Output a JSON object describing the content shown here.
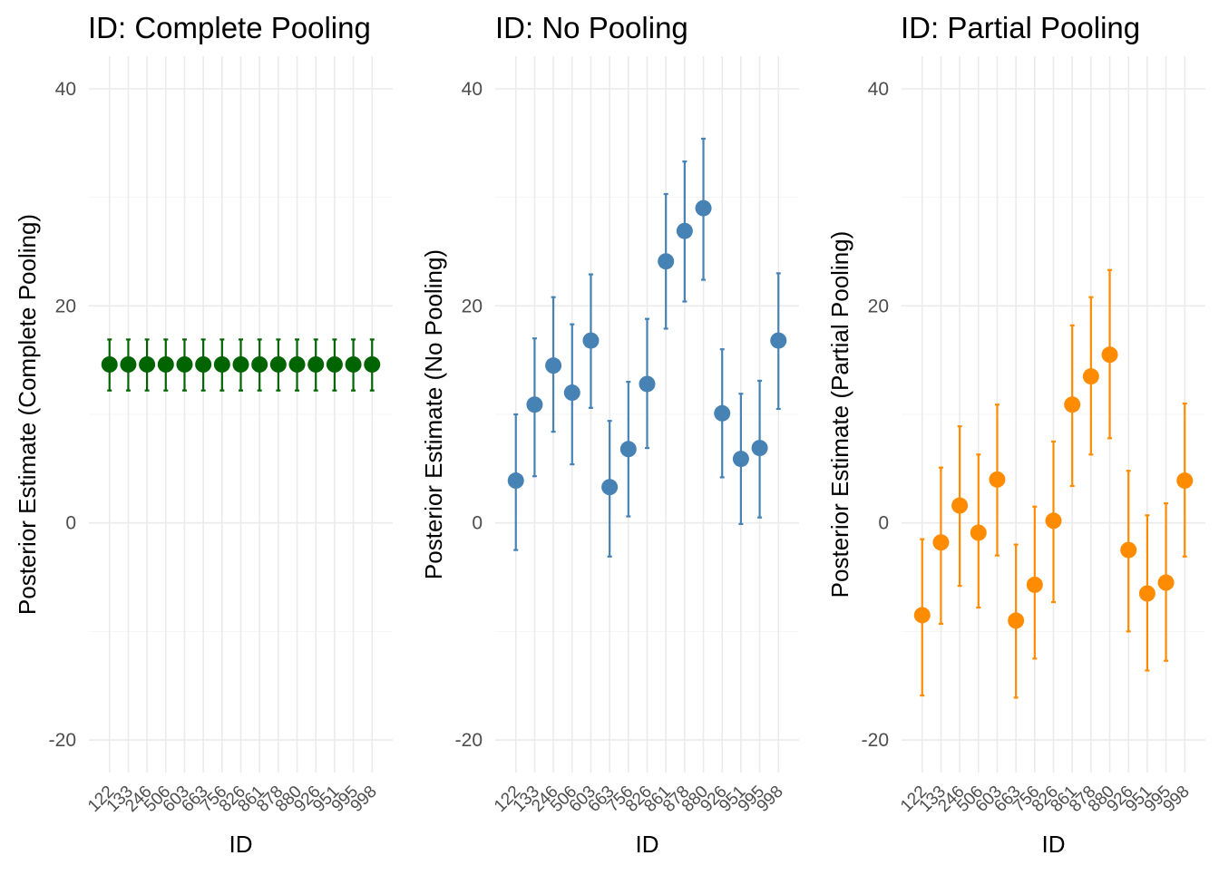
{
  "chart_data": [
    {
      "type": "scatter",
      "title": "ID: Complete Pooling",
      "xlabel": "ID",
      "ylabel": "Posterior Estimate (Complete Pooling)",
      "categories": [
        "122",
        "133",
        "246",
        "506",
        "603",
        "663",
        "756",
        "826",
        "861",
        "878",
        "880",
        "926",
        "951",
        "995",
        "998"
      ],
      "estimates": [
        14.6,
        14.6,
        14.6,
        14.6,
        14.6,
        14.6,
        14.6,
        14.6,
        14.6,
        14.6,
        14.6,
        14.6,
        14.6,
        14.6,
        14.6
      ],
      "lower": [
        12.2,
        12.2,
        12.2,
        12.2,
        12.2,
        12.2,
        12.2,
        12.2,
        12.2,
        12.2,
        12.2,
        12.2,
        12.2,
        12.2,
        12.2
      ],
      "upper": [
        16.9,
        16.9,
        16.9,
        16.9,
        16.9,
        16.9,
        16.9,
        16.9,
        16.9,
        16.9,
        16.9,
        16.9,
        16.9,
        16.9,
        16.9
      ],
      "color": "#006400",
      "ylim": [
        -23,
        43
      ],
      "yticks": [
        -20,
        0,
        20,
        40
      ],
      "grid": true
    },
    {
      "type": "scatter",
      "title": "ID: No Pooling",
      "xlabel": "ID",
      "ylabel": "Posterior Estimate (No Pooling)",
      "categories": [
        "122",
        "133",
        "246",
        "506",
        "603",
        "663",
        "756",
        "826",
        "861",
        "878",
        "880",
        "926",
        "951",
        "995",
        "998"
      ],
      "estimates": [
        3.9,
        10.9,
        14.5,
        12.0,
        16.8,
        3.3,
        6.8,
        12.8,
        24.1,
        26.9,
        29.0,
        10.1,
        5.9,
        6.9,
        16.8
      ],
      "lower": [
        -2.5,
        4.3,
        8.4,
        5.4,
        10.6,
        -3.1,
        0.6,
        6.9,
        17.9,
        20.4,
        22.4,
        4.2,
        -0.1,
        0.5,
        10.5
      ],
      "upper": [
        10.0,
        17.0,
        20.8,
        18.3,
        22.9,
        9.4,
        13.0,
        18.8,
        30.3,
        33.3,
        35.4,
        16.0,
        11.9,
        13.1,
        23.0
      ],
      "color": "#4682b4",
      "ylim": [
        -23,
        43
      ],
      "yticks": [
        -20,
        0,
        20,
        40
      ],
      "grid": true
    },
    {
      "type": "scatter",
      "title": "ID: Partial Pooling",
      "xlabel": "ID",
      "ylabel": "Posterior Estimate (Partial Pooling)",
      "categories": [
        "122",
        "133",
        "246",
        "506",
        "603",
        "663",
        "756",
        "826",
        "861",
        "878",
        "880",
        "926",
        "951",
        "995",
        "998"
      ],
      "estimates": [
        -8.5,
        -1.8,
        1.6,
        -0.9,
        4.0,
        -9.0,
        -5.7,
        0.2,
        10.9,
        13.5,
        15.5,
        -2.5,
        -6.5,
        -5.5,
        3.9
      ],
      "lower": [
        -15.9,
        -9.3,
        -5.8,
        -7.8,
        -3.0,
        -16.1,
        -12.5,
        -7.3,
        3.4,
        6.3,
        7.8,
        -10.0,
        -13.6,
        -12.7,
        -3.1
      ],
      "upper": [
        -1.5,
        5.1,
        8.9,
        6.3,
        10.9,
        -2.0,
        1.5,
        7.5,
        18.2,
        20.8,
        23.3,
        4.8,
        0.7,
        1.8,
        11.0
      ],
      "color": "#ff8c00",
      "ylim": [
        -23,
        43
      ],
      "yticks": [
        -20,
        0,
        20,
        40
      ],
      "grid": true
    }
  ]
}
